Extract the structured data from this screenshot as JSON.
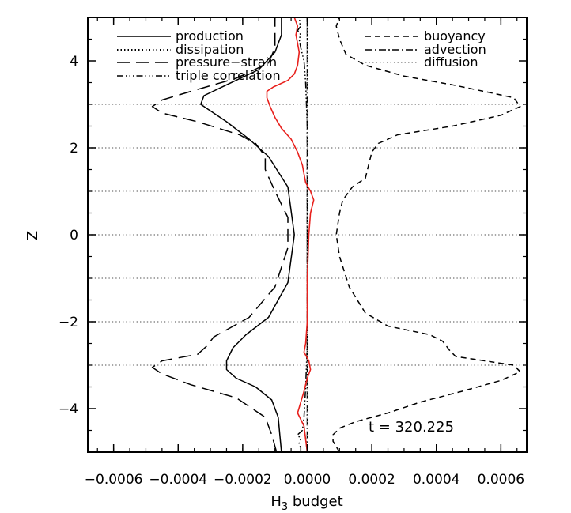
{
  "chart_data": {
    "type": "line",
    "xlabel": "H",
    "xlabel_sub": "3",
    "xlabel_rest": " budget",
    "ylabel": "Z",
    "xlim": [
      -0.00068,
      0.00068
    ],
    "ylim": [
      -5,
      5
    ],
    "x_ticks": [
      -0.0006,
      -0.0004,
      -0.0002,
      0.0,
      0.0002,
      0.0004,
      0.0006
    ],
    "x_tick_labels": [
      "−0.0006",
      "−0.0004",
      "−0.0002",
      "0.0000",
      "0.0002",
      "0.0004",
      "0.0006"
    ],
    "y_ticks": [
      -4,
      -2,
      0,
      2,
      4
    ],
    "y_tick_labels": [
      "−4",
      "−2",
      "0",
      "2",
      "4"
    ],
    "hgrid": [
      -3,
      -2,
      -1,
      0,
      1,
      2,
      3
    ],
    "legend_left": [
      "production",
      "dissipation",
      "pressure−strain",
      "triple correlation"
    ],
    "legend_right": [
      "buoyancy",
      "advection",
      "diffusion"
    ],
    "annotation": "t  =  320.225",
    "series": [
      {
        "name": "production",
        "style": "solid",
        "color": "#000000",
        "points": [
          [
            -8e-05,
            -5
          ],
          [
            -8.5e-05,
            -4.6
          ],
          [
            -9e-05,
            -4.2
          ],
          [
            -0.00011,
            -3.8
          ],
          [
            -0.00016,
            -3.5
          ],
          [
            -0.00022,
            -3.3
          ],
          [
            -0.00025,
            -3.1
          ],
          [
            -0.00025,
            -2.9
          ],
          [
            -0.00023,
            -2.6
          ],
          [
            -0.00019,
            -2.3
          ],
          [
            -0.00012,
            -1.9
          ],
          [
            -6e-05,
            -1.1
          ],
          [
            -4e-05,
            0
          ],
          [
            -6e-05,
            1.1
          ],
          [
            -0.00012,
            1.8
          ],
          [
            -0.00018,
            2.2
          ],
          [
            -0.00025,
            2.6
          ],
          [
            -0.00033,
            3.0
          ],
          [
            -0.00032,
            3.2
          ],
          [
            -0.00025,
            3.45
          ],
          [
            -0.00015,
            3.8
          ],
          [
            -0.0001,
            4.2
          ],
          [
            -8e-05,
            4.6
          ],
          [
            -8e-05,
            5
          ]
        ]
      },
      {
        "name": "dissipation",
        "style": "dotted",
        "color": "#000000",
        "points": [
          [
            0.0,
            -5
          ],
          [
            0.0,
            5
          ]
        ]
      },
      {
        "name": "pressure−strain",
        "style": "longdash",
        "color": "#000000",
        "points": [
          [
            -9.5e-05,
            -5
          ],
          [
            -0.00011,
            -4.6
          ],
          [
            -0.00013,
            -4.2
          ],
          [
            -0.00022,
            -3.75
          ],
          [
            -0.00036,
            -3.45
          ],
          [
            -0.00045,
            -3.2
          ],
          [
            -0.00048,
            -3.05
          ],
          [
            -0.00045,
            -2.9
          ],
          [
            -0.00034,
            -2.75
          ],
          [
            -0.00031,
            -2.55
          ],
          [
            -0.00029,
            -2.35
          ],
          [
            -0.00018,
            -1.9
          ],
          [
            -0.0001,
            -1.2
          ],
          [
            -6e-05,
            -0.3
          ],
          [
            -6e-05,
            0.4
          ],
          [
            -0.0001,
            1.0
          ],
          [
            -0.00013,
            1.5
          ],
          [
            -0.00013,
            1.8
          ],
          [
            -0.00016,
            2.1
          ],
          [
            -0.00021,
            2.3
          ],
          [
            -0.00034,
            2.6
          ],
          [
            -0.00045,
            2.8
          ],
          [
            -0.00048,
            2.95
          ],
          [
            -0.00045,
            3.1
          ],
          [
            -0.00036,
            3.3
          ],
          [
            -0.00022,
            3.6
          ],
          [
            -0.00012,
            3.95
          ],
          [
            -0.0001,
            4.3
          ],
          [
            -0.0001,
            5
          ]
        ]
      },
      {
        "name": "triple correlation",
        "style": "dashdotdot",
        "color": "#000000",
        "points": [
          [
            -2e-05,
            -5
          ],
          [
            -2e-05,
            -4.9
          ],
          [
            -2.5e-05,
            -4.8
          ],
          [
            -2e-05,
            -4.7
          ],
          [
            -3e-05,
            -4.6
          ],
          [
            -1.5e-05,
            -4.5
          ],
          [
            -1e-05,
            -4.2
          ],
          [
            -5e-06,
            -3.5
          ],
          [
            0.0,
            -2.5
          ],
          [
            0.0,
            2.5
          ],
          [
            -5e-06,
            3.5
          ],
          [
            -1e-05,
            4.0
          ],
          [
            -2e-05,
            4.3
          ],
          [
            -2.5e-05,
            4.5
          ],
          [
            -2e-05,
            4.6
          ],
          [
            -3e-05,
            4.7
          ],
          [
            -2e-05,
            4.8
          ],
          [
            -2.5e-05,
            4.9
          ],
          [
            -2e-05,
            5
          ]
        ]
      },
      {
        "name": "buoyancy",
        "style": "dash",
        "color": "#000000",
        "points": [
          [
            0.0001,
            -5
          ],
          [
            8e-05,
            -4.75
          ],
          [
            8e-05,
            -4.6
          ],
          [
            0.0001,
            -4.45
          ],
          [
            0.00015,
            -4.3
          ],
          [
            0.00025,
            -4.1
          ],
          [
            0.00035,
            -3.85
          ],
          [
            0.00048,
            -3.6
          ],
          [
            0.0006,
            -3.35
          ],
          [
            0.00066,
            -3.15
          ],
          [
            0.00064,
            -3.0
          ],
          [
            0.00055,
            -2.9
          ],
          [
            0.00046,
            -2.8
          ],
          [
            0.00044,
            -2.65
          ],
          [
            0.00042,
            -2.45
          ],
          [
            0.00038,
            -2.3
          ],
          [
            0.00025,
            -2.1
          ],
          [
            0.00018,
            -1.8
          ],
          [
            0.00013,
            -1.2
          ],
          [
            0.0001,
            -0.5
          ],
          [
            9e-05,
            0.0
          ],
          [
            0.0001,
            0.5
          ],
          [
            0.00011,
            0.8
          ],
          [
            0.00014,
            1.1
          ],
          [
            0.00018,
            1.3
          ],
          [
            0.00019,
            1.6
          ],
          [
            0.0002,
            1.9
          ],
          [
            0.00022,
            2.1
          ],
          [
            0.00028,
            2.3
          ],
          [
            0.00045,
            2.5
          ],
          [
            0.0006,
            2.75
          ],
          [
            0.00066,
            2.95
          ],
          [
            0.00064,
            3.15
          ],
          [
            0.00058,
            3.25
          ],
          [
            0.00045,
            3.45
          ],
          [
            0.0003,
            3.65
          ],
          [
            0.00018,
            3.9
          ],
          [
            0.00012,
            4.15
          ],
          [
            0.0001,
            4.5
          ],
          [
            9e-05,
            4.8
          ],
          [
            0.0001,
            5
          ]
        ]
      },
      {
        "name": "advection",
        "style": "dashdot",
        "color": "#000000",
        "points": [
          [
            0.0,
            -5
          ],
          [
            0.0,
            5
          ]
        ]
      },
      {
        "name": "diffusion",
        "style": "gray-dotted",
        "color": "#888888",
        "points": [
          [
            0.0,
            -5
          ],
          [
            0.0,
            5
          ]
        ]
      },
      {
        "name": "",
        "style": "solid",
        "color": "#e8201c",
        "points": [
          [
            0.0,
            -5
          ],
          [
            -1e-05,
            -4.4
          ],
          [
            -3e-05,
            -4.1
          ],
          [
            -2e-05,
            -3.85
          ],
          [
            -1e-05,
            -3.6
          ],
          [
            0.0,
            -3.3
          ],
          [
            1e-05,
            -3.1
          ],
          [
            5e-06,
            -2.9
          ],
          [
            -1e-05,
            -2.7
          ],
          [
            -5e-06,
            -2.5
          ],
          [
            0.0,
            -2.0
          ],
          [
            0.0,
            -1.0
          ],
          [
            5e-06,
            0.0
          ],
          [
            1e-05,
            0.5
          ],
          [
            2e-05,
            0.8
          ],
          [
            1e-05,
            1.0
          ],
          [
            -5e-06,
            1.2
          ],
          [
            -1e-05,
            1.4
          ],
          [
            -1.5e-05,
            1.6
          ],
          [
            -3e-05,
            1.9
          ],
          [
            -5e-05,
            2.2
          ],
          [
            -8e-05,
            2.45
          ],
          [
            -0.0001,
            2.7
          ],
          [
            -0.000115,
            2.95
          ],
          [
            -0.000125,
            3.15
          ],
          [
            -0.000125,
            3.3
          ],
          [
            -0.000105,
            3.4
          ],
          [
            -6e-05,
            3.55
          ],
          [
            -4e-05,
            3.7
          ],
          [
            -3e-05,
            3.9
          ],
          [
            -2.5e-05,
            4.2
          ],
          [
            -3e-05,
            4.4
          ],
          [
            -3.5e-05,
            4.6
          ],
          [
            -3e-05,
            4.8
          ],
          [
            -4e-05,
            5.0
          ]
        ]
      }
    ]
  }
}
